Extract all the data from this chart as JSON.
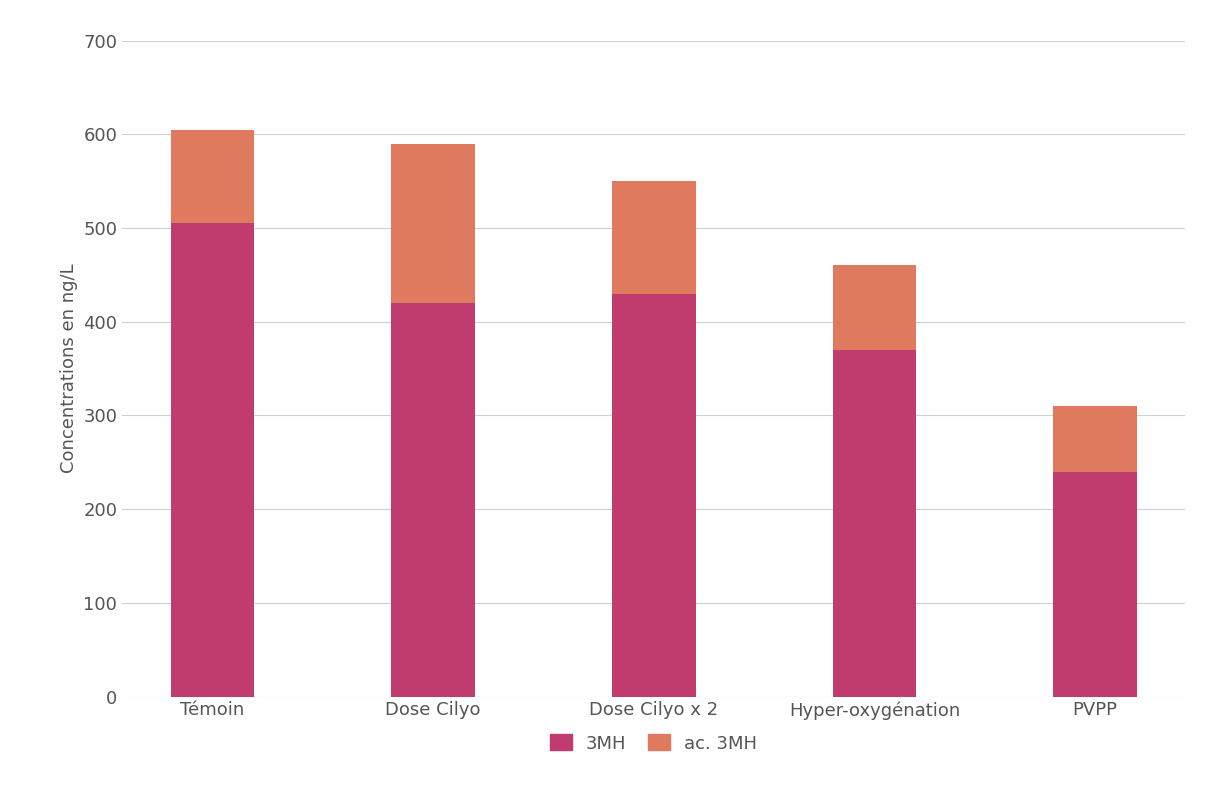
{
  "categories": [
    "Témoin",
    "Dose Cilyo",
    "Dose Cilyo x 2",
    "Hyper-oxygénation",
    "PVPP"
  ],
  "values_3MH": [
    505,
    420,
    430,
    370,
    240
  ],
  "values_ac3MH": [
    100,
    170,
    120,
    90,
    70
  ],
  "color_3MH": "#c03c6e",
  "color_ac3MH": "#e07a5f",
  "ylabel": "Concentrations en ng/L",
  "ylim": [
    0,
    700
  ],
  "yticks": [
    0,
    100,
    200,
    300,
    400,
    500,
    600,
    700
  ],
  "legend_3MH": "3MH",
  "legend_ac3MH": "ac. 3MH",
  "bar_width": 0.38,
  "background_color": "#ffffff",
  "grid_color": "#d0d0d0",
  "font_size_ticks": 13,
  "font_size_ylabel": 13,
  "font_size_legend": 13,
  "tick_color": "#555555",
  "ylabel_color": "#555555"
}
